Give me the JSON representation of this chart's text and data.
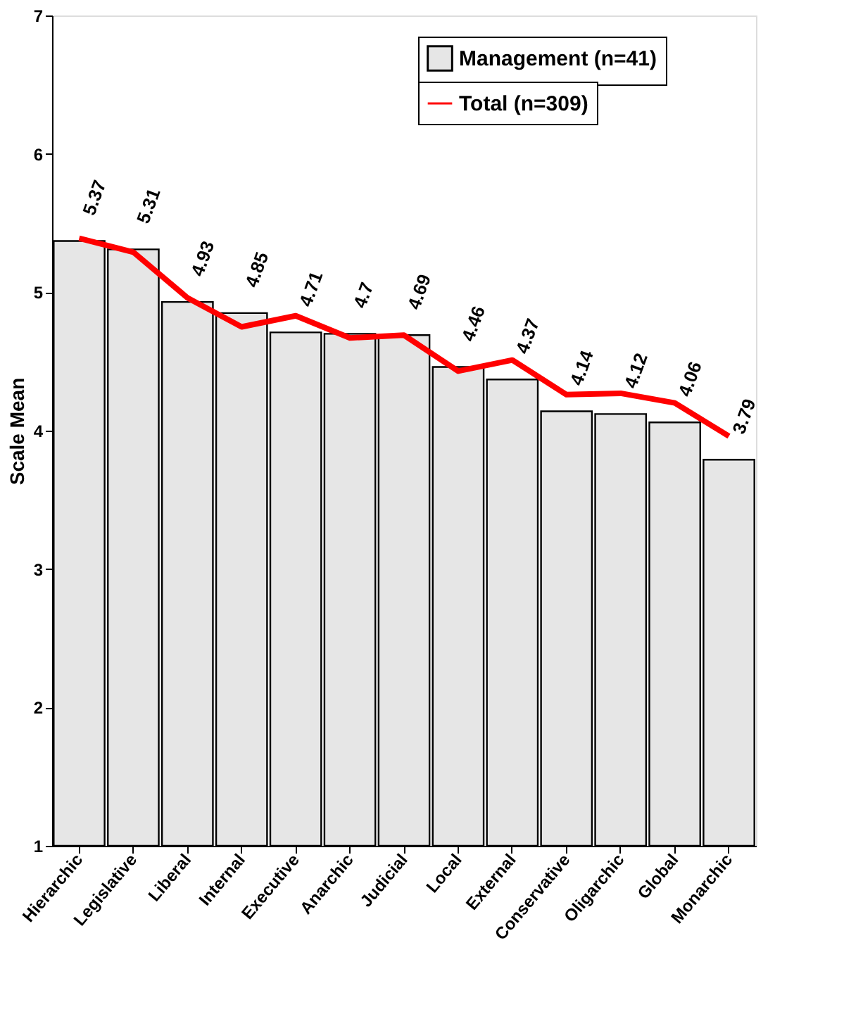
{
  "chart_data": {
    "type": "bar",
    "ylabel": "Scale Mean",
    "categories": [
      "Hierarchic",
      "Legislative",
      "Liberal",
      "Internal",
      "Executive",
      "Anarchic",
      "Judicial",
      "Local",
      "External",
      "Conservative",
      "Oligarchic",
      "Global",
      "Monarchic"
    ],
    "series": [
      {
        "name": "Management (n=41)",
        "color": "#e6e6e6",
        "values": [
          5.37,
          5.31,
          4.93,
          4.85,
          4.71,
          4.7,
          4.69,
          4.46,
          4.37,
          4.14,
          4.12,
          4.06,
          3.79
        ],
        "value_labels": [
          "5.37",
          "5.31",
          "4.93",
          "4.85",
          "4.71",
          "4.7",
          "4.69",
          "4.46",
          "4.37",
          "4.14",
          "4.12",
          "4.06",
          "3.79"
        ]
      },
      {
        "name": "Total (n=309)",
        "type": "line",
        "color": "#ff0000",
        "values": [
          5.39,
          5.29,
          4.96,
          4.75,
          4.83,
          4.67,
          4.69,
          4.43,
          4.51,
          4.26,
          4.27,
          4.2,
          3.96
        ]
      }
    ],
    "ylim": [
      1,
      7
    ],
    "yticks": [
      1,
      2,
      3,
      4,
      5,
      6,
      7
    ],
    "grid": false,
    "legend": "top right",
    "marker": "none"
  }
}
